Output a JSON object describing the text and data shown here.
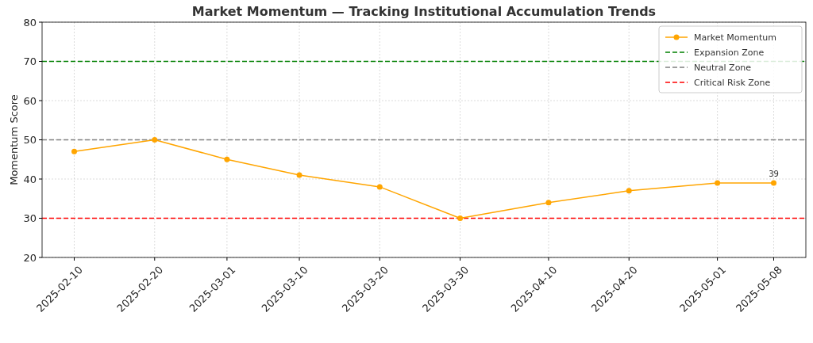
{
  "chart_data": {
    "type": "line",
    "title": "Market Momentum — Tracking Institutional Accumulation Trends",
    "ylabel": "Momentum Score",
    "x": [
      "2025-02-10",
      "2025-02-20",
      "2025-03-01",
      "2025-03-10",
      "2025-03-20",
      "2025-03-30",
      "2025-04-10",
      "2025-04-20",
      "2025-05-01",
      "2025-05-08"
    ],
    "series": [
      {
        "name": "Market Momentum",
        "color": "#ffa500",
        "values": [
          47,
          50,
          45,
          41,
          38,
          30,
          34,
          37,
          39,
          39
        ]
      }
    ],
    "xlim": [
      "2025-02-06",
      "2025-05-12"
    ],
    "xticks": [
      "2025-02-10",
      "2025-02-20",
      "2025-03-01",
      "2025-03-10",
      "2025-03-20",
      "2025-03-30",
      "2025-04-10",
      "2025-04-20",
      "2025-05-01",
      "2025-05-08"
    ],
    "ylim": [
      20,
      80
    ],
    "yticks": [
      20,
      30,
      40,
      50,
      60,
      70,
      80
    ],
    "ref_lines": [
      {
        "axis": "y",
        "value": 70,
        "label": "Expansion Zone",
        "color": "#008000",
        "line_style": "dashed"
      },
      {
        "axis": "y",
        "value": 50,
        "label": "Neutral Zone",
        "color": "#808080",
        "line_style": "dashed"
      },
      {
        "axis": "y",
        "value": 30,
        "label": "Critical Risk Zone",
        "color": "#ff0000",
        "line_style": "dashed"
      }
    ],
    "annotations": [
      {
        "text": "39",
        "x": "2025-05-08",
        "y": 39
      }
    ],
    "grid": true,
    "legend": "top right",
    "marker": "circle",
    "line_style": "solid"
  }
}
